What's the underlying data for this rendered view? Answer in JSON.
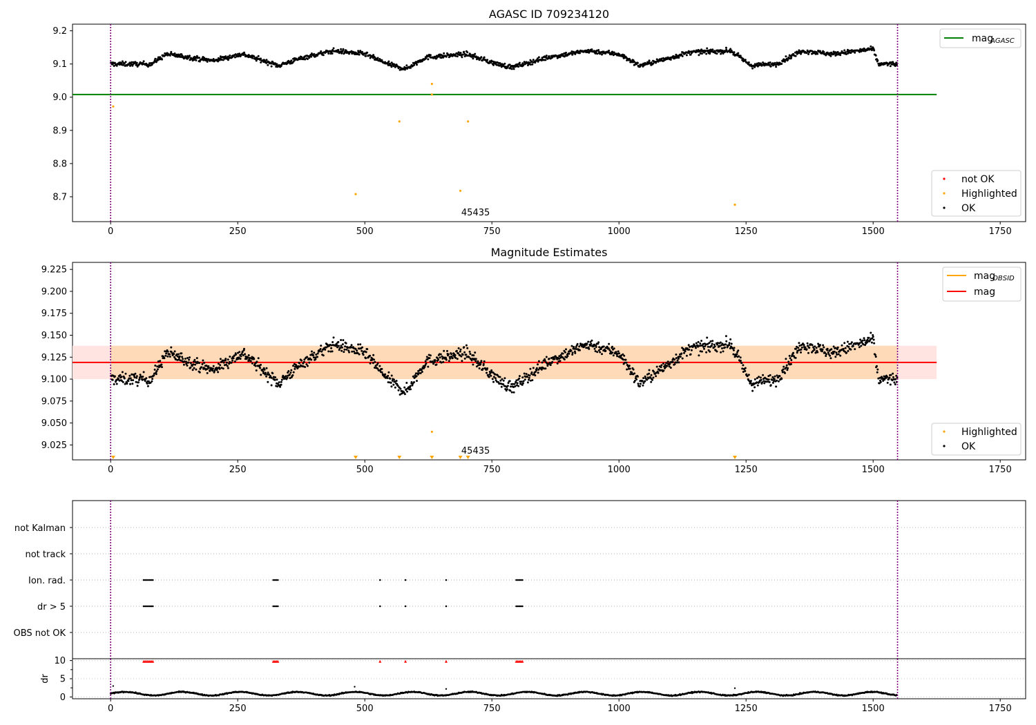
{
  "colors": {
    "ok": "#000000",
    "highlighted": "#ffa500",
    "not_ok": "#ff0000",
    "mag_agasc": "#008000",
    "mag": "#ff0000",
    "mag_obsid": "#ffa500",
    "obs_boundary": "#800080",
    "band_inner": "#ffdab9",
    "band_outer": "#ffe4e1"
  },
  "chart_data": [
    {
      "type": "scatter",
      "title": "AGASC ID 709234120",
      "xlim": [
        -75,
        1800
      ],
      "ylim": [
        8.625,
        9.22
      ],
      "xticks": [
        "0",
        "250",
        "500",
        "750",
        "1000",
        "1250",
        "1500",
        "1750"
      ],
      "yticks": [
        "8.7",
        "8.8",
        "8.9",
        "9.0",
        "9.1",
        "9.2"
      ],
      "grid": false,
      "legend_upper": {
        "placement": "top-right",
        "entries": [
          {
            "label": "mag",
            "sub": "AGASC",
            "color": "#008000"
          }
        ]
      },
      "legend_lower": {
        "placement": "bottom-right",
        "entries": [
          {
            "label": "not OK",
            "color": "#ff0000"
          },
          {
            "label": "Highlighted",
            "color": "#ffa500"
          },
          {
            "label": "OK",
            "color": "#000000"
          }
        ]
      },
      "annotation": {
        "text": "45435",
        "x": 775
      },
      "mag_agasc": 9.008,
      "obs_boundaries": [
        0,
        1548
      ],
      "ok_series": {
        "n_points": 1540,
        "trend": [
          [
            0,
            9.1
          ],
          [
            80,
            9.1
          ],
          [
            110,
            9.13
          ],
          [
            200,
            9.11
          ],
          [
            260,
            9.13
          ],
          [
            330,
            9.095
          ],
          [
            380,
            9.12
          ],
          [
            440,
            9.14
          ],
          [
            500,
            9.13
          ],
          [
            545,
            9.1
          ],
          [
            580,
            9.085
          ],
          [
            620,
            9.12
          ],
          [
            700,
            9.13
          ],
          [
            760,
            9.1
          ],
          [
            790,
            9.09
          ],
          [
            860,
            9.12
          ],
          [
            940,
            9.14
          ],
          [
            1000,
            9.13
          ],
          [
            1040,
            9.095
          ],
          [
            1080,
            9.11
          ],
          [
            1140,
            9.135
          ],
          [
            1220,
            9.14
          ],
          [
            1260,
            9.095
          ],
          [
            1310,
            9.1
          ],
          [
            1360,
            9.14
          ],
          [
            1420,
            9.13
          ],
          [
            1500,
            9.145
          ],
          [
            1510,
            9.1
          ],
          [
            1548,
            9.1
          ]
        ]
      },
      "highlighted_points": [
        [
          5,
          8.972
        ],
        [
          482,
          8.708
        ],
        [
          568,
          8.927
        ],
        [
          632,
          9.04
        ],
        [
          632,
          9.008
        ],
        [
          688,
          8.718
        ],
        [
          703,
          8.927
        ],
        [
          1228,
          8.676
        ]
      ]
    },
    {
      "type": "scatter",
      "title": "Magnitude Estimates",
      "xlim": [
        -75,
        1800
      ],
      "ylim": [
        9.008,
        9.233
      ],
      "xticks": [
        "0",
        "250",
        "500",
        "750",
        "1000",
        "1250",
        "1500",
        "1750"
      ],
      "yticks": [
        "9.025",
        "9.050",
        "9.075",
        "9.100",
        "9.125",
        "9.150",
        "9.175",
        "9.200",
        "9.225"
      ],
      "grid": false,
      "legend_upper": {
        "placement": "top-right",
        "entries": [
          {
            "label": "mag",
            "sub": "OBSID",
            "color": "#ffa500"
          },
          {
            "label": "mag",
            "color": "#ff0000"
          }
        ]
      },
      "legend_lower": {
        "placement": "bottom-right",
        "entries": [
          {
            "label": "Highlighted",
            "color": "#ffa500"
          },
          {
            "label": "OK",
            "color": "#000000"
          }
        ]
      },
      "annotation": {
        "text": "45435",
        "x": 775
      },
      "mag": 9.119,
      "band_inner": [
        9.1,
        9.138
      ],
      "band_outer": [
        9.1,
        9.138
      ],
      "obs_boundaries": [
        0,
        1548
      ],
      "highlighted_points": [
        [
          632,
          9.04
        ]
      ],
      "highlighted_markers_x": [
        5,
        482,
        568,
        632,
        688,
        703,
        1228
      ]
    },
    {
      "type": "scatter",
      "title": "",
      "xlim": [
        -75,
        1800
      ],
      "xticks": [
        "0",
        "250",
        "500",
        "750",
        "1000",
        "1250",
        "1500",
        "1750"
      ],
      "flag_rows": [
        "not Kalman",
        "not track",
        "Ion. rad.",
        "dr > 5",
        "OBS not OK"
      ],
      "flag_points": {
        "Ion. rad.": [
          65,
          68,
          71,
          74,
          77,
          80,
          83,
          320,
          323,
          326,
          329,
          530,
          580,
          660,
          798,
          801,
          804,
          807,
          810
        ],
        "dr > 5": [
          65,
          68,
          71,
          74,
          77,
          80,
          83,
          320,
          323,
          326,
          329,
          530,
          580,
          660,
          798,
          801,
          804,
          807,
          810
        ]
      },
      "dr_ylabel": "dr",
      "dr_yticks": [
        "0",
        "5",
        "10"
      ],
      "dr_ylim": [
        -0.5,
        10.5
      ],
      "dr_outliers": [
        [
          5,
          3.0
        ],
        [
          480,
          2.8
        ],
        [
          660,
          2.2
        ],
        [
          1228,
          2.4
        ]
      ],
      "dr_flagged_x": [
        65,
        68,
        71,
        74,
        77,
        80,
        83,
        320,
        323,
        326,
        329,
        530,
        580,
        660,
        798,
        801,
        804,
        807,
        810
      ],
      "dr_flagged_y": 9.8,
      "obs_boundaries": [
        0,
        1548
      ]
    }
  ]
}
